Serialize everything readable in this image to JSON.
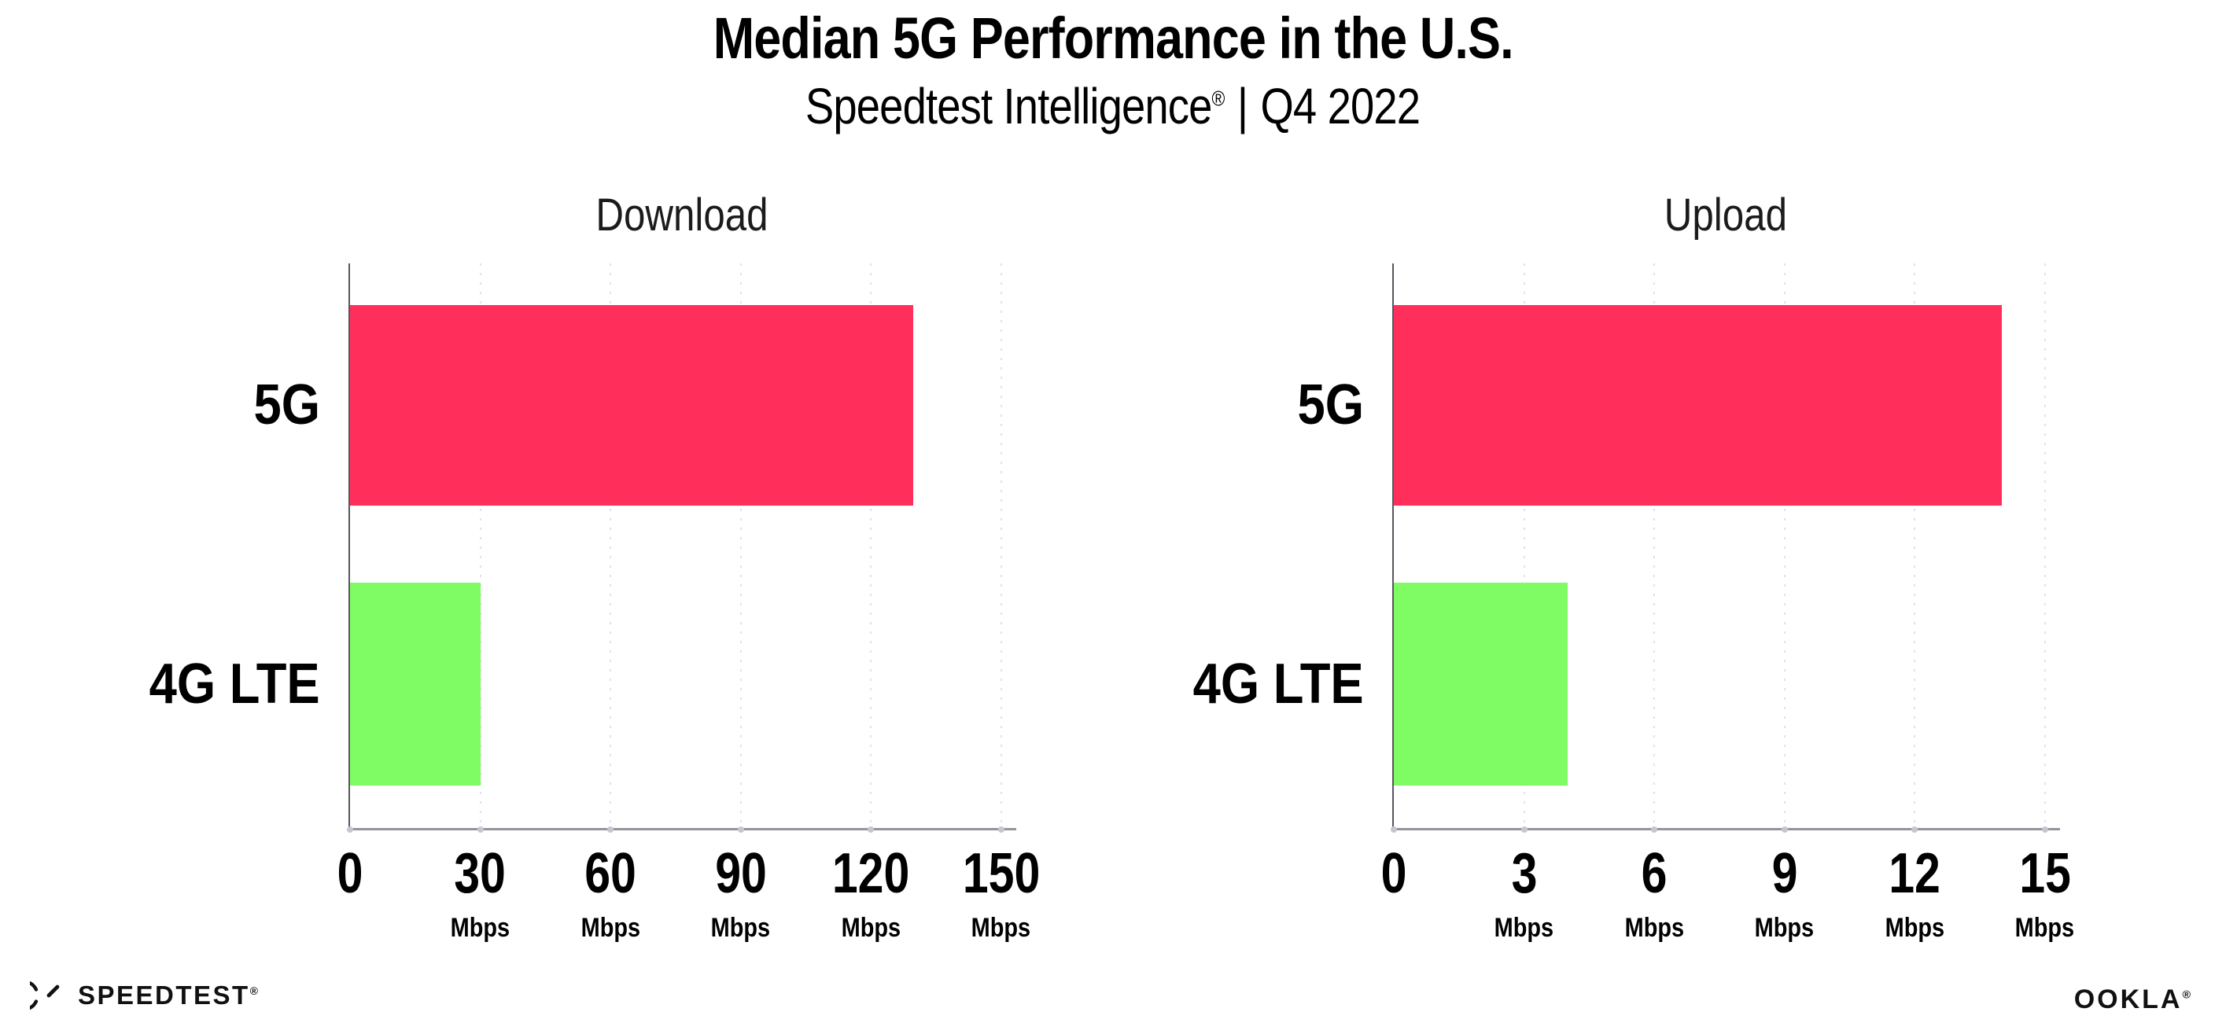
{
  "header": {
    "title": "Median 5G Performance in the U.S.",
    "subtitle": {
      "brand": "Speedtest Intelligence",
      "registered_mark": "®",
      "separator": "|",
      "period": "Q4 2022"
    }
  },
  "colors": {
    "bar_5g": "#ff2e5b",
    "bar_4g_lte": "#7ffc63",
    "axis_x": "#94949c",
    "axis_y": "#56565e",
    "gridline": "#e0e1ec",
    "text": "#000000"
  },
  "chart_data": [
    {
      "type": "bar",
      "orientation": "horizontal",
      "title": "Download",
      "categories": [
        "5G",
        "4G LTE"
      ],
      "values": [
        129.7,
        30
      ],
      "bar_colors": [
        "#ff2e5b",
        "#7ffc63"
      ],
      "unit": "Mbps",
      "xticks": [
        0,
        30,
        60,
        90,
        120,
        150
      ],
      "xtick_unit_label": "Mbps",
      "xlim": [
        0,
        153.5
      ],
      "grid": "vertical-dotted",
      "legend": "none"
    },
    {
      "type": "bar",
      "orientation": "horizontal",
      "title": "Upload",
      "categories": [
        "5G",
        "4G LTE"
      ],
      "values": [
        14,
        4
      ],
      "bar_colors": [
        "#ff2e5b",
        "#7ffc63"
      ],
      "unit": "Mbps",
      "xticks": [
        0,
        3,
        6,
        9,
        12,
        15
      ],
      "xtick_unit_label": "Mbps",
      "xlim": [
        0,
        15.35
      ],
      "grid": "vertical-dotted",
      "legend": "none"
    }
  ],
  "footer": {
    "speedtest_logo_text": "SPEEDTEST",
    "speedtest_logo_mark": "®",
    "ookla_logo_text": "OOKLA",
    "ookla_logo_mark": "®"
  }
}
